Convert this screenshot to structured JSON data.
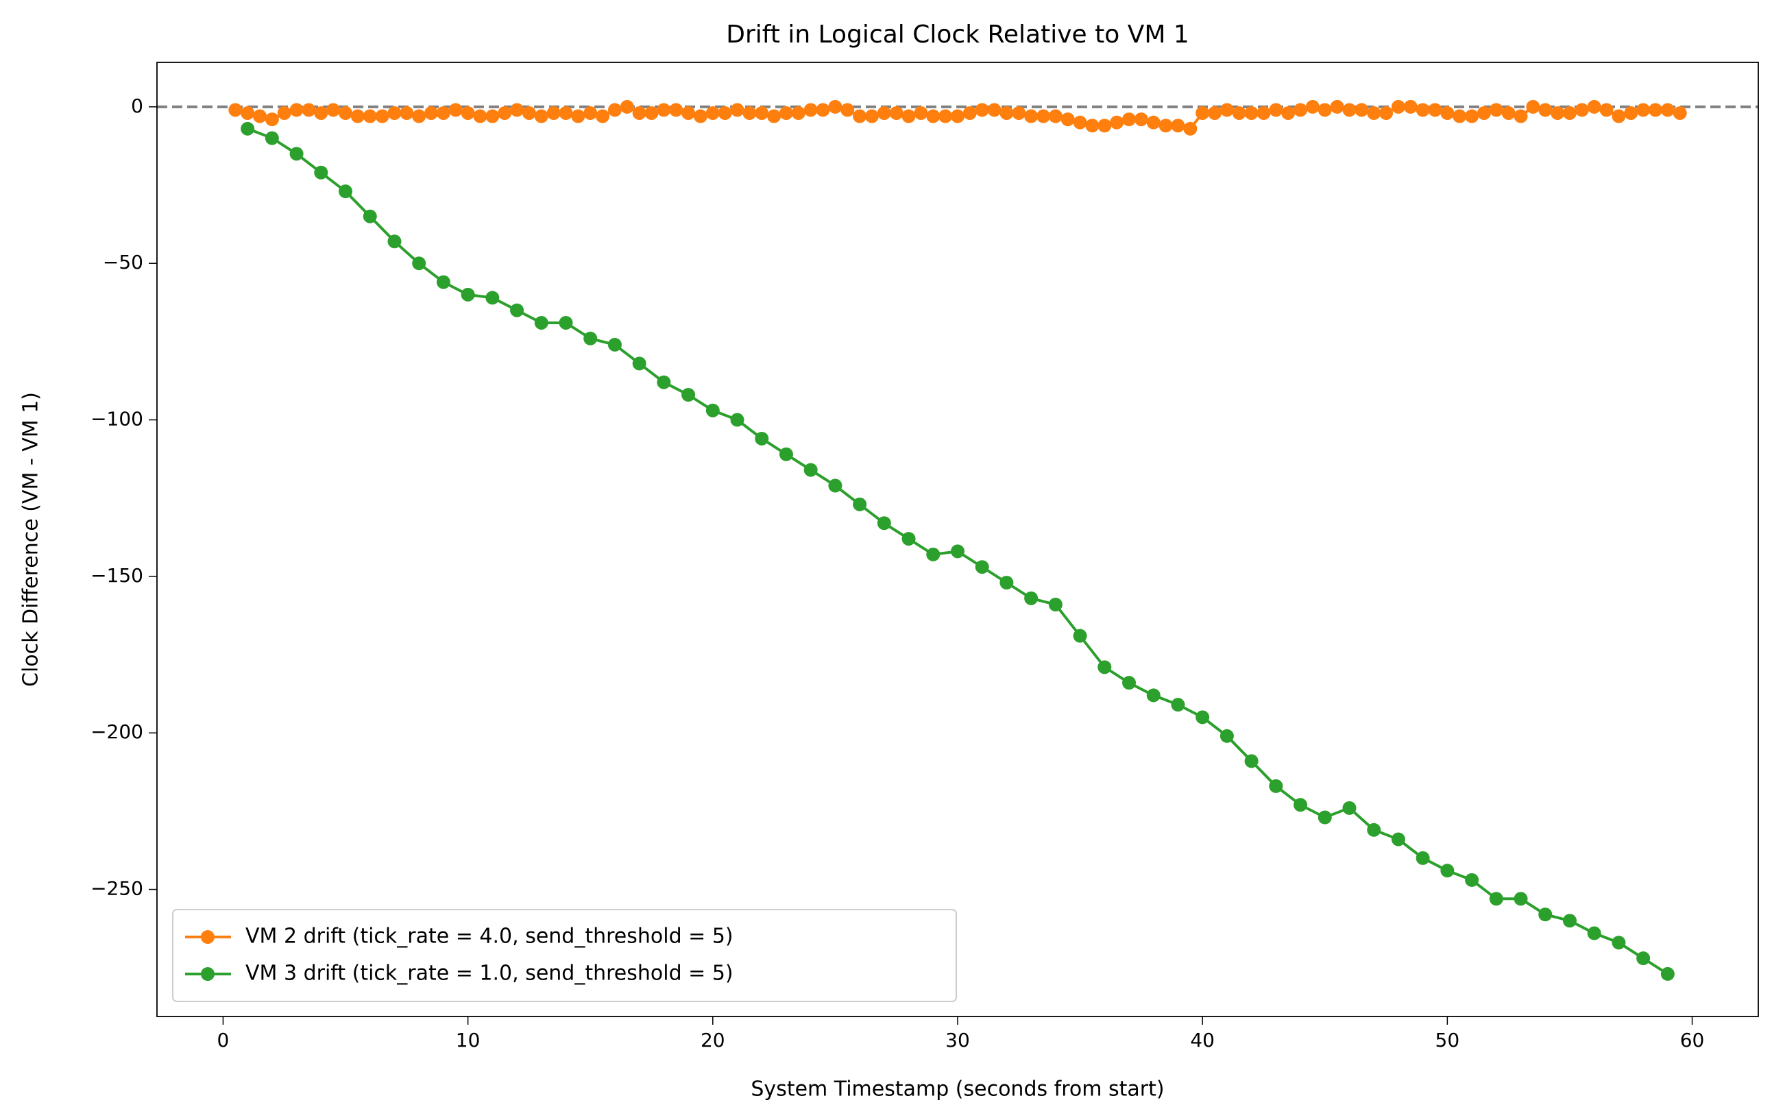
{
  "chart_data": {
    "type": "line",
    "title": "Drift in Logical Clock Relative to VM 1",
    "xlabel": "System Timestamp (seconds from start)",
    "ylabel": "Clock Difference (VM - VM 1)",
    "xlim": [
      -2.7,
      62.7
    ],
    "ylim": [
      -290.6,
      14.2
    ],
    "xticks": [
      0,
      10,
      20,
      30,
      40,
      50,
      60
    ],
    "yticks": [
      {
        "value": -250,
        "label": "−250"
      },
      {
        "value": -200,
        "label": "−200"
      },
      {
        "value": -150,
        "label": "−150"
      },
      {
        "value": -100,
        "label": "−100"
      },
      {
        "value": -50,
        "label": "−50"
      },
      0
    ],
    "hline": {
      "y": 0,
      "color": "#808080",
      "style": "dashed"
    },
    "legend": "lower left",
    "series": [
      {
        "name": "VM 2 drift (tick_rate = 4.0, send_threshold = 5)",
        "color": "#ff7f0e",
        "x": [
          0.5,
          1,
          1.5,
          2,
          2.5,
          3,
          3.5,
          4,
          4.5,
          5,
          5.5,
          6,
          6.5,
          7,
          7.5,
          8,
          8.5,
          9,
          9.5,
          10,
          10.5,
          11,
          11.5,
          12,
          12.5,
          13,
          13.5,
          14,
          14.5,
          15,
          15.5,
          16,
          16.5,
          17,
          17.5,
          18,
          18.5,
          19,
          19.5,
          20,
          20.5,
          21,
          21.5,
          22,
          22.5,
          23,
          23.5,
          24,
          24.5,
          25,
          25.5,
          26,
          26.5,
          27,
          27.5,
          28,
          28.5,
          29,
          29.5,
          30,
          30.5,
          31,
          31.5,
          32,
          32.5,
          33,
          33.5,
          34,
          34.5,
          35,
          35.5,
          36,
          36.5,
          37,
          37.5,
          38,
          38.5,
          39,
          39.5,
          40,
          40.5,
          41,
          41.5,
          42,
          42.5,
          43,
          43.5,
          44,
          44.5,
          45,
          45.5,
          46,
          46.5,
          47,
          47.5,
          48,
          48.5,
          49,
          49.5,
          50,
          50.5,
          51,
          51.5,
          52,
          52.5,
          53,
          53.5,
          54,
          54.5,
          55,
          55.5,
          56,
          56.5,
          57,
          57.5,
          58,
          58.5,
          59,
          59.5
        ],
        "values": [
          -1,
          -2,
          -3,
          -4,
          -2,
          -1,
          -1,
          -2,
          -1,
          -2,
          -3,
          -3,
          -3,
          -2,
          -2,
          -3,
          -2,
          -2,
          -1,
          -2,
          -3,
          -3,
          -2,
          -1,
          -2,
          -3,
          -2,
          -2,
          -3,
          -2,
          -3,
          -1,
          0,
          -2,
          -2,
          -1,
          -1,
          -2,
          -3,
          -2,
          -2,
          -1,
          -2,
          -2,
          -3,
          -2,
          -2,
          -1,
          -1,
          0,
          -1,
          -3,
          -3,
          -2,
          -2,
          -3,
          -2,
          -3,
          -3,
          -3,
          -2,
          -1,
          -1,
          -2,
          -2,
          -3,
          -3,
          -3,
          -4,
          -5,
          -6,
          -6,
          -5,
          -4,
          -4,
          -5,
          -6,
          -6,
          -7,
          -2,
          -2,
          -1,
          -2,
          -2,
          -2,
          -1,
          -2,
          -1,
          0,
          -1,
          0,
          -1,
          -1,
          -2,
          -2,
          0,
          0,
          -1,
          -1,
          -2,
          -3,
          -3,
          -2,
          -1,
          -2,
          -3,
          0,
          -1,
          -2,
          -2,
          -1,
          0,
          -1,
          -3,
          -2,
          -1,
          -1,
          -1,
          -2
        ]
      },
      {
        "name": "VM 3 drift (tick_rate = 1.0, send_threshold = 5)",
        "color": "#2ca02c",
        "x": [
          1,
          2,
          3,
          4,
          5,
          6,
          7,
          8,
          9,
          10,
          11,
          12,
          13,
          14,
          15,
          16,
          17,
          18,
          19,
          20,
          21,
          22,
          23,
          24,
          25,
          26,
          27,
          28,
          29,
          30,
          31,
          32,
          33,
          34,
          35,
          36,
          37,
          38,
          39,
          40,
          41,
          42,
          43,
          44,
          45,
          46,
          47,
          48,
          49,
          50,
          51,
          52,
          53,
          54,
          55,
          56,
          57,
          58,
          59
        ],
        "values": [
          -7,
          -10,
          -15,
          -21,
          -27,
          -35,
          -43,
          -50,
          -56,
          -60,
          -61,
          -65,
          -69,
          -69,
          -74,
          -76,
          -82,
          -88,
          -92,
          -97,
          -100,
          -106,
          -111,
          -116,
          -121,
          -127,
          -133,
          -138,
          -143,
          -142,
          -147,
          -152,
          -157,
          -159,
          -169,
          -179,
          -184,
          -188,
          -191,
          -195,
          -201,
          -209,
          -217,
          -223,
          -227,
          -224,
          -231,
          -234,
          -240,
          -244,
          -247,
          -253,
          -253,
          -258,
          -260,
          -264,
          -267,
          -272,
          -277
        ]
      }
    ]
  }
}
